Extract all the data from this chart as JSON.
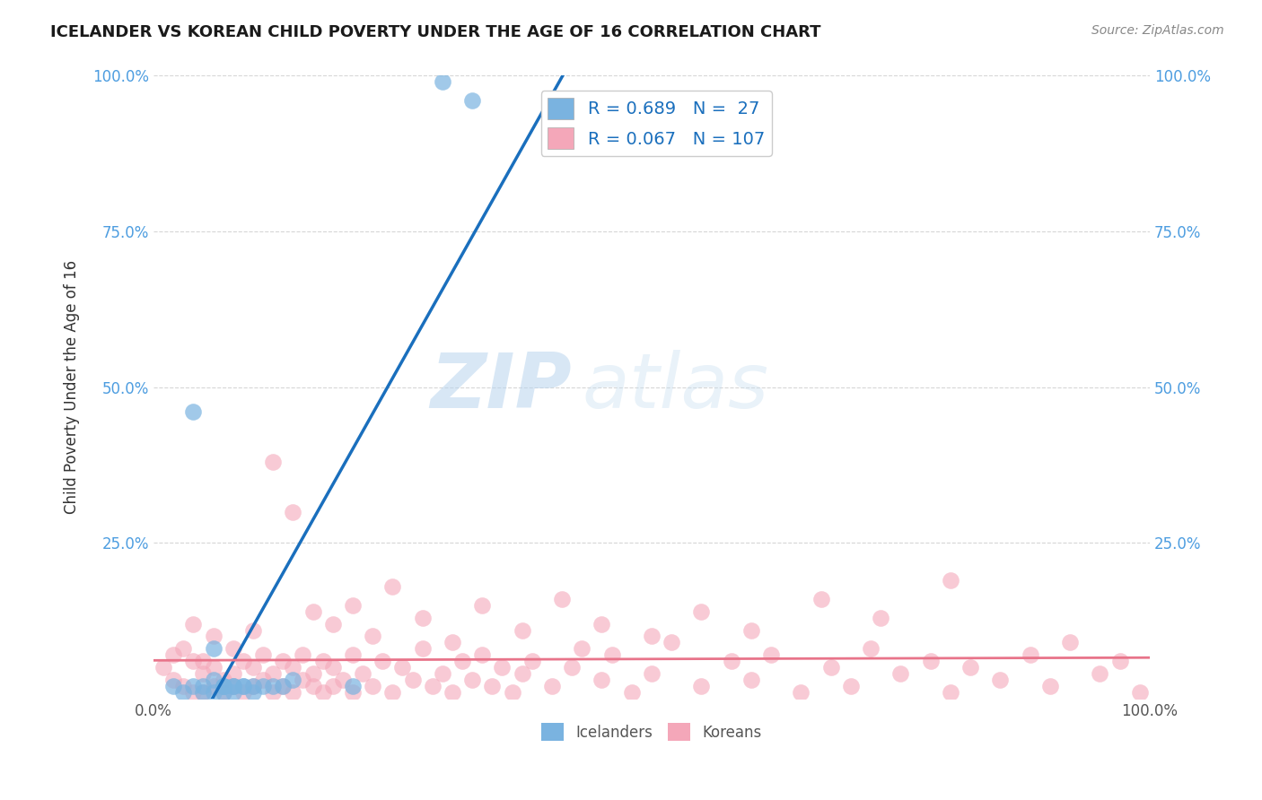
{
  "title": "ICELANDER VS KOREAN CHILD POVERTY UNDER THE AGE OF 16 CORRELATION CHART",
  "source": "Source: ZipAtlas.com",
  "ylabel": "Child Poverty Under the Age of 16",
  "xlim": [
    0.0,
    1.0
  ],
  "ylim": [
    0.0,
    1.0
  ],
  "icelander_color": "#7ab3e0",
  "korean_color": "#f4a7b9",
  "icelander_line_color": "#1a6fbd",
  "korean_line_color": "#e8748a",
  "legend_R_icelander": "0.689",
  "legend_N_icelander": "27",
  "legend_R_korean": "0.067",
  "legend_N_korean": "107",
  "watermark_zip": "ZIP",
  "watermark_atlas": "atlas",
  "background_color": "#ffffff",
  "grid_color": "#cccccc",
  "tick_color": "#4d9de0",
  "title_color": "#1a1a1a",
  "source_color": "#888888",
  "ylabel_color": "#333333",
  "icelander_x": [
    0.02,
    0.03,
    0.04,
    0.05,
    0.05,
    0.06,
    0.06,
    0.07,
    0.07,
    0.07,
    0.08,
    0.08,
    0.09,
    0.1,
    0.04,
    0.06,
    0.07,
    0.08,
    0.09,
    0.1,
    0.11,
    0.12,
    0.13,
    0.14,
    0.2,
    0.29,
    0.32
  ],
  "icelander_y": [
    0.02,
    0.01,
    0.02,
    0.01,
    0.02,
    0.03,
    0.01,
    0.02,
    0.01,
    0.02,
    0.02,
    0.01,
    0.02,
    0.01,
    0.46,
    0.08,
    0.02,
    0.02,
    0.02,
    0.02,
    0.02,
    0.02,
    0.02,
    0.03,
    0.02,
    0.99,
    0.96
  ],
  "korean_x": [
    0.01,
    0.02,
    0.02,
    0.03,
    0.03,
    0.04,
    0.04,
    0.05,
    0.05,
    0.05,
    0.06,
    0.06,
    0.07,
    0.07,
    0.08,
    0.08,
    0.09,
    0.09,
    0.1,
    0.1,
    0.11,
    0.11,
    0.12,
    0.12,
    0.13,
    0.13,
    0.14,
    0.14,
    0.15,
    0.15,
    0.16,
    0.16,
    0.17,
    0.17,
    0.18,
    0.18,
    0.19,
    0.2,
    0.2,
    0.21,
    0.22,
    0.23,
    0.24,
    0.25,
    0.26,
    0.27,
    0.28,
    0.29,
    0.3,
    0.31,
    0.32,
    0.33,
    0.34,
    0.35,
    0.36,
    0.37,
    0.38,
    0.4,
    0.42,
    0.43,
    0.45,
    0.46,
    0.48,
    0.5,
    0.52,
    0.55,
    0.58,
    0.6,
    0.62,
    0.65,
    0.68,
    0.7,
    0.72,
    0.75,
    0.78,
    0.8,
    0.82,
    0.85,
    0.88,
    0.9,
    0.92,
    0.95,
    0.97,
    0.99,
    0.04,
    0.06,
    0.08,
    0.1,
    0.12,
    0.14,
    0.16,
    0.18,
    0.2,
    0.22,
    0.24,
    0.27,
    0.3,
    0.33,
    0.37,
    0.41,
    0.45,
    0.5,
    0.55,
    0.6,
    0.67,
    0.73,
    0.8
  ],
  "korean_y": [
    0.05,
    0.03,
    0.07,
    0.02,
    0.08,
    0.01,
    0.06,
    0.01,
    0.04,
    0.06,
    0.02,
    0.05,
    0.01,
    0.03,
    0.02,
    0.04,
    0.01,
    0.06,
    0.02,
    0.05,
    0.03,
    0.07,
    0.01,
    0.04,
    0.02,
    0.06,
    0.01,
    0.05,
    0.03,
    0.07,
    0.02,
    0.04,
    0.01,
    0.06,
    0.02,
    0.05,
    0.03,
    0.01,
    0.07,
    0.04,
    0.02,
    0.06,
    0.01,
    0.05,
    0.03,
    0.08,
    0.02,
    0.04,
    0.01,
    0.06,
    0.03,
    0.07,
    0.02,
    0.05,
    0.01,
    0.04,
    0.06,
    0.02,
    0.05,
    0.08,
    0.03,
    0.07,
    0.01,
    0.04,
    0.09,
    0.02,
    0.06,
    0.03,
    0.07,
    0.01,
    0.05,
    0.02,
    0.08,
    0.04,
    0.06,
    0.01,
    0.05,
    0.03,
    0.07,
    0.02,
    0.09,
    0.04,
    0.06,
    0.01,
    0.12,
    0.1,
    0.08,
    0.11,
    0.38,
    0.3,
    0.14,
    0.12,
    0.15,
    0.1,
    0.18,
    0.13,
    0.09,
    0.15,
    0.11,
    0.16,
    0.12,
    0.1,
    0.14,
    0.11,
    0.16,
    0.13,
    0.19
  ]
}
